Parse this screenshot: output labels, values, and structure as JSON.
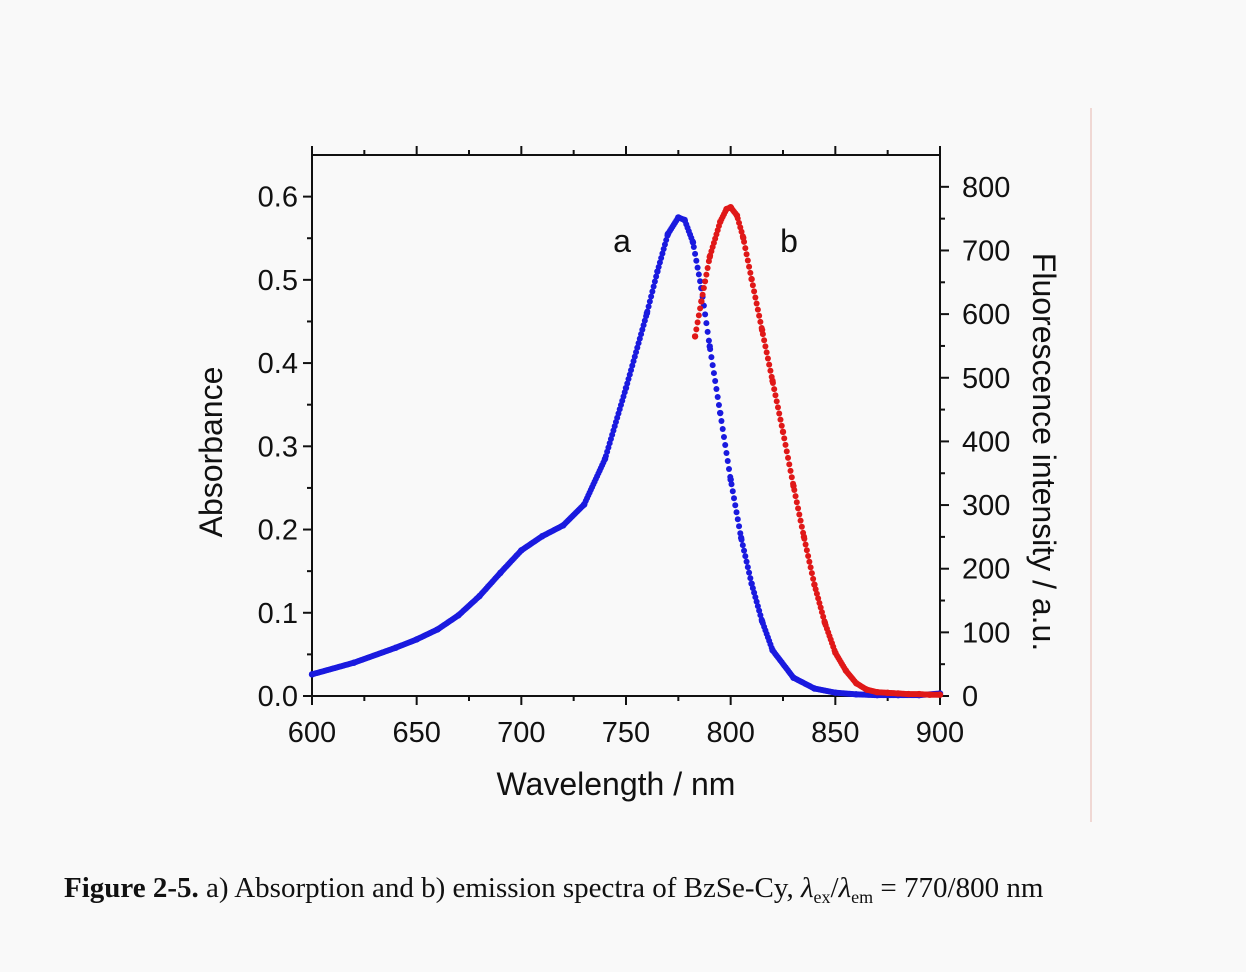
{
  "chart_data": {
    "type": "scatter",
    "title": "",
    "xlabel": "Wavelength / nm",
    "ylabel_left": "Absorbance",
    "ylabel_right": "Fluorescence intensity / a.u.",
    "xlim": [
      600,
      900
    ],
    "ylim_left": [
      0,
      0.65
    ],
    "ylim_right": [
      0,
      850
    ],
    "x_ticks": [
      "600",
      "650",
      "700",
      "750",
      "800",
      "850",
      "900"
    ],
    "y_left_ticks": [
      "0.0",
      "0.1",
      "0.2",
      "0.3",
      "0.4",
      "0.5",
      "0.6"
    ],
    "y_right_ticks": [
      "0",
      "100",
      "200",
      "300",
      "400",
      "500",
      "600",
      "700",
      "800"
    ],
    "colors": {
      "absorption": "#1a1adf",
      "emission": "#e01818"
    },
    "series": [
      {
        "name": "a",
        "label": "a",
        "axis": "left",
        "x": [
          600,
          620,
          640,
          650,
          660,
          670,
          680,
          690,
          700,
          710,
          720,
          730,
          740,
          750,
          760,
          765,
          770,
          775,
          778,
          782,
          786,
          790,
          795,
          800,
          805,
          810,
          815,
          820,
          830,
          840,
          850,
          860,
          870,
          880,
          890,
          900
        ],
        "values": [
          0.026,
          0.04,
          0.058,
          0.068,
          0.08,
          0.097,
          0.12,
          0.148,
          0.175,
          0.192,
          0.205,
          0.23,
          0.285,
          0.37,
          0.46,
          0.51,
          0.555,
          0.575,
          0.572,
          0.545,
          0.49,
          0.42,
          0.34,
          0.26,
          0.19,
          0.135,
          0.09,
          0.055,
          0.022,
          0.009,
          0.004,
          0.002,
          0.001,
          0.001,
          0.001,
          0.003
        ]
      },
      {
        "name": "b",
        "label": "b",
        "axis": "right",
        "x": [
          783,
          786,
          790,
          795,
          798,
          800,
          803,
          806,
          810,
          815,
          820,
          825,
          830,
          835,
          840,
          845,
          850,
          855,
          860,
          865,
          870,
          875,
          880,
          885,
          890,
          895,
          900
        ],
        "values": [
          565,
          620,
          690,
          745,
          765,
          768,
          755,
          720,
          655,
          575,
          495,
          415,
          330,
          250,
          175,
          115,
          68,
          40,
          20,
          10,
          6,
          5,
          4,
          3,
          3,
          2,
          2
        ]
      }
    ]
  },
  "caption": {
    "fig_label": "Figure 2-5.",
    "text_before": " a) Absorption and b) emission spectra of BzSe-Cy, ",
    "lambda": "λ",
    "sub_ex": "ex",
    "slash": "/",
    "sub_em": "em",
    "text_after": " = 770/800 nm"
  }
}
